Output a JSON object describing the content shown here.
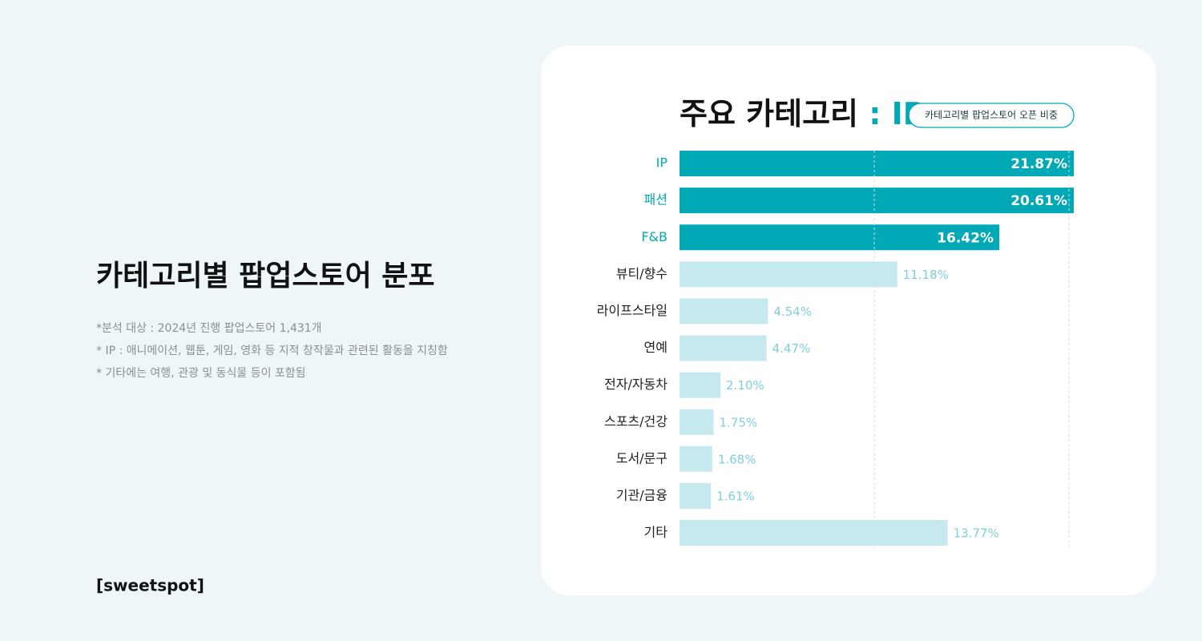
{
  "page": {
    "title": "카테고리별 팝업스토어 분포",
    "notes": [
      "*분석 대상 : 2024년 진행 팝업스토어 1,431개",
      "* IP : 애니메이션, 웹툰, 게임, 영화 등 지적 창작물과 관련된 활동을 지칭함",
      "* 기타에는 여행, 관광 및 동식물 등이 포함됨"
    ],
    "brand": "[sweetspot]"
  },
  "chart_data": {
    "type": "hbar",
    "title": "주요 카테고리",
    "title_highlight": ": IP",
    "subtitle": "카테고리별 팝업스토어 오픈 비중",
    "categories": [
      "IP",
      "패션",
      "F&B",
      "뷰티/향수",
      "라이프스타일",
      "연예",
      "전자/자동차",
      "스포츠/건강",
      "도서/문구",
      "기관/금융",
      "기타"
    ],
    "values": [
      21.87,
      20.61,
      16.42,
      11.18,
      4.54,
      4.47,
      2.1,
      1.75,
      1.68,
      1.61,
      13.77
    ],
    "value_labels": [
      "21.87%",
      "20.61%",
      "16.42%",
      "11.18%",
      "4.54%",
      "4.47%",
      "2.10%",
      "1.75%",
      "1.68%",
      "1.61%",
      "13.77%"
    ],
    "emphasis": [
      true,
      true,
      true,
      false,
      false,
      false,
      false,
      false,
      false,
      false,
      false
    ],
    "highlight_color": "#00a9b5",
    "color": "#c6e9ef",
    "xlim": [
      0,
      20
    ],
    "xticks": [
      10,
      20
    ],
    "grid": true
  }
}
